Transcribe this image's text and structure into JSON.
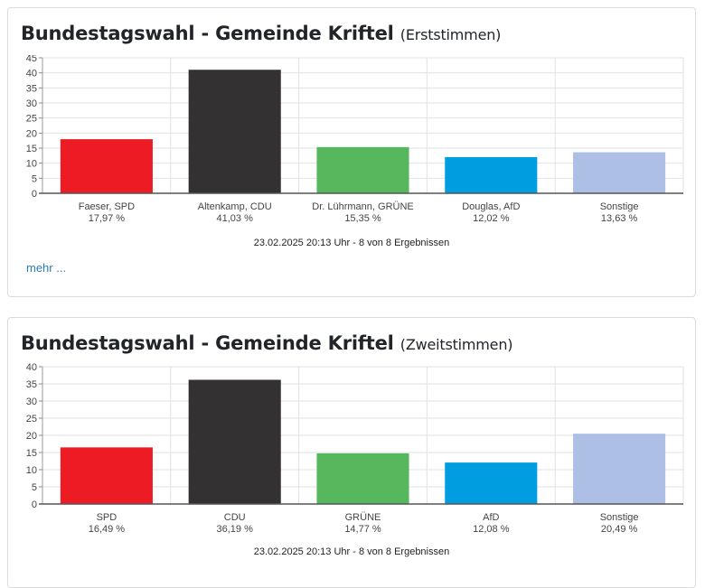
{
  "cards": [
    {
      "title_main": "Bundestagswahl - Gemeinde Kriftel",
      "title_suffix": "(Erststimmen)",
      "timestamp": "23.02.2025 20:13 Uhr - 8 von 8 Ergebnissen",
      "more_label": "mehr ..."
    },
    {
      "title_main": "Bundestagswahl - Gemeinde Kriftel",
      "title_suffix": "(Zweitstimmen)",
      "timestamp": "23.02.2025 20:13 Uhr - 8 von 8 Ergebnissen"
    }
  ],
  "chart_data": [
    {
      "type": "bar",
      "title": "Bundestagswahl - Gemeinde Kriftel (Erststimmen)",
      "categories": [
        "Faeser, SPD",
        "Altenkamp, CDU",
        "Dr. Lührmann, GRÜNE",
        "Douglas, AfD",
        "Sonstige"
      ],
      "value_labels": [
        "17,97 %",
        "41,03 %",
        "15,35 %",
        "12,02 %",
        "13,63 %"
      ],
      "values": [
        17.97,
        41.03,
        15.35,
        12.02,
        13.63
      ],
      "colors": [
        "#ed1c24",
        "#333132",
        "#57b75d",
        "#009ee0",
        "#adbfe5"
      ],
      "ylim": [
        0,
        45
      ],
      "yticks": [
        0,
        5,
        10,
        15,
        20,
        25,
        30,
        35,
        40,
        45
      ],
      "grid": true
    },
    {
      "type": "bar",
      "title": "Bundestagswahl - Gemeinde Kriftel (Zweitstimmen)",
      "categories": [
        "SPD",
        "CDU",
        "GRÜNE",
        "AfD",
        "Sonstige"
      ],
      "value_labels": [
        "16,49 %",
        "36,19 %",
        "14,77 %",
        "12,08 %",
        "20,49 %"
      ],
      "values": [
        16.49,
        36.19,
        14.77,
        12.08,
        20.49
      ],
      "colors": [
        "#ed1c24",
        "#333132",
        "#57b75d",
        "#009ee0",
        "#adbfe5"
      ],
      "ylim": [
        0,
        40
      ],
      "yticks": [
        0,
        5,
        10,
        15,
        20,
        25,
        30,
        35,
        40
      ],
      "grid": true
    }
  ]
}
